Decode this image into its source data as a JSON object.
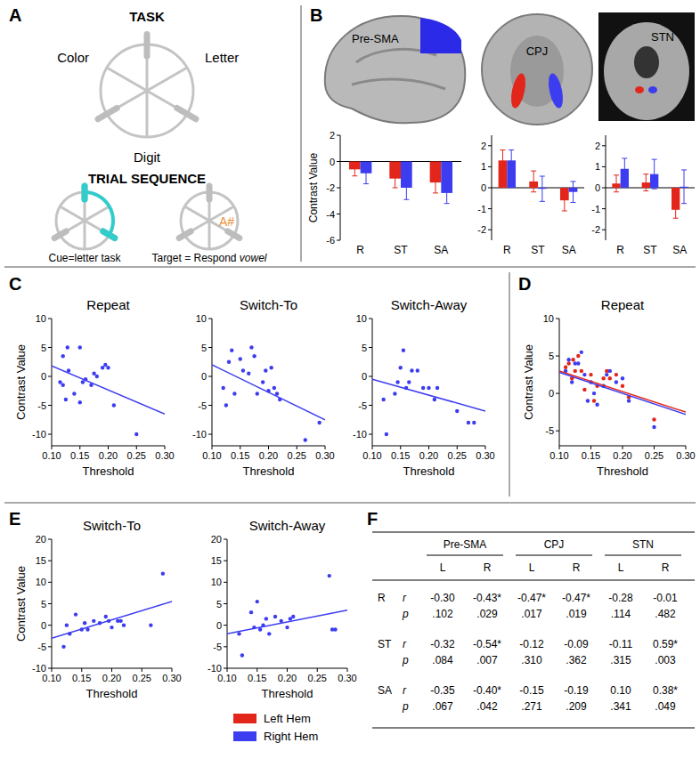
{
  "panel_labels": [
    "A",
    "B",
    "C",
    "D",
    "E",
    "F"
  ],
  "task_diagram": {
    "title": "TASK",
    "tasks": [
      "Color",
      "Letter",
      "Digit"
    ],
    "sequence_title": "TRIAL SEQUENCE",
    "cue_caption": "Cue=letter task",
    "target_caption_prefix": "Target = Respond ",
    "target_caption_emphasis": "vowel",
    "target_stimulus": "A#"
  },
  "brain_images": [
    {
      "label": "Pre-SMA"
    },
    {
      "label": "CPJ"
    },
    {
      "label": "STN"
    }
  ],
  "chart_data": [
    {
      "type": "bar",
      "y_label": "Contrast Value",
      "categories": [
        "R",
        "ST",
        "SA"
      ],
      "ylim": [
        -6,
        2
      ],
      "yticks": [
        2,
        0,
        -2,
        -4,
        -6
      ],
      "series": [
        {
          "name": "Left Hem",
          "color": "#e3261c",
          "values": [
            -0.6,
            -1.3,
            -1.6
          ],
          "errors": [
            0.5,
            0.7,
            0.8
          ]
        },
        {
          "name": "Right Hem",
          "color": "#3c3cf0",
          "values": [
            -0.9,
            -2.0,
            -2.4
          ],
          "errors": [
            0.8,
            0.9,
            0.8
          ]
        }
      ]
    },
    {
      "type": "bar",
      "categories": [
        "R",
        "ST",
        "SA"
      ],
      "ylim": [
        -2.5,
        2.5
      ],
      "yticks": [
        2,
        1,
        0,
        -1,
        -2
      ],
      "series": [
        {
          "color": "#e3261c",
          "values": [
            1.3,
            0.3,
            -0.6
          ],
          "errors": [
            0.5,
            0.5,
            0.5
          ]
        },
        {
          "color": "#3c3cf0",
          "values": [
            1.3,
            -0.05,
            -0.2
          ],
          "errors": [
            0.5,
            0.6,
            0.5
          ]
        }
      ]
    },
    {
      "type": "bar",
      "categories": [
        "R",
        "ST",
        "SA"
      ],
      "ylim": [
        -2.5,
        2.5
      ],
      "yticks": [
        2,
        1,
        0,
        -1,
        -2
      ],
      "series": [
        {
          "color": "#e3261c",
          "values": [
            0.2,
            0.25,
            -1.05
          ],
          "errors": [
            0.4,
            0.4,
            0.4
          ]
        },
        {
          "color": "#3c3cf0",
          "values": [
            0.9,
            0.65,
            0.05
          ],
          "errors": [
            0.5,
            0.7,
            0.8
          ]
        }
      ]
    },
    {
      "type": "scatter",
      "title": "Repeat",
      "x_label": "Threshold",
      "y_label": "Contrast Value",
      "xlim": [
        0.1,
        0.3
      ],
      "ylim": [
        -12,
        10
      ],
      "xticks": [
        {
          "value": 0.1,
          "label": "0.10"
        },
        0.15,
        {
          "value": 0.2,
          "label": "0.20"
        },
        0.25,
        {
          "value": 0.3,
          "label": "0.30"
        }
      ],
      "yticks": [
        10,
        5,
        0,
        -5,
        -10
      ],
      "series": [
        {
          "type": "scatter",
          "marker": "circle",
          "color": "#3c3cf0",
          "x": [
            0.115,
            0.12,
            0.12,
            0.125,
            0.128,
            0.13,
            0.14,
            0.15,
            0.15,
            0.155,
            0.16,
            0.17,
            0.175,
            0.18,
            0.19,
            0.195,
            0.2,
            0.21,
            0.25
          ],
          "values": [
            -1,
            3.5,
            -1.5,
            -4,
            5,
            1,
            -3,
            5,
            -4.5,
            -1,
            -0.5,
            -1.5,
            0.5,
            0,
            1.5,
            2,
            1.5,
            -5,
            -10
          ]
        },
        {
          "type": "line",
          "color": "#3c3cf0",
          "x": [
            0.1,
            0.3
          ],
          "values": [
            1.8,
            -6.5
          ]
        }
      ]
    },
    {
      "type": "scatter",
      "title": "Switch-To",
      "x_label": "Threshold",
      "xlim": [
        0.1,
        0.3
      ],
      "ylim": [
        -12,
        10
      ],
      "xticks": [
        {
          "value": 0.1,
          "label": "0.10"
        },
        0.15,
        {
          "value": 0.2,
          "label": "0.20"
        },
        0.25,
        {
          "value": 0.3,
          "label": "0.30"
        }
      ],
      "yticks": [
        10,
        5,
        0,
        -5,
        -10
      ],
      "series": [
        {
          "type": "scatter",
          "marker": "circle",
          "color": "#3c3cf0",
          "x": [
            0.12,
            0.125,
            0.13,
            0.135,
            0.14,
            0.15,
            0.155,
            0.165,
            0.17,
            0.175,
            0.18,
            0.19,
            0.195,
            0.2,
            0.205,
            0.21,
            0.215,
            0.22,
            0.265,
            0.29
          ],
          "values": [
            -2,
            -5,
            2.5,
            4.5,
            -3,
            3,
            1,
            0.5,
            5,
            3.5,
            -3,
            -1,
            1,
            -2.5,
            1.5,
            -2,
            -3,
            -4,
            -11,
            -8
          ]
        },
        {
          "type": "line",
          "color": "#3c3cf0",
          "x": [
            0.1,
            0.3
          ],
          "values": [
            2,
            -7.5
          ]
        }
      ]
    },
    {
      "type": "scatter",
      "title": "Switch-Away",
      "x_label": "Threshold",
      "xlim": [
        0.1,
        0.3
      ],
      "ylim": [
        -12,
        10
      ],
      "xticks": [
        {
          "value": 0.1,
          "label": "0.10"
        },
        0.15,
        {
          "value": 0.2,
          "label": "0.20"
        },
        0.25,
        {
          "value": 0.3,
          "label": "0.30"
        }
      ],
      "yticks": [
        10,
        5,
        0,
        -5,
        -10
      ],
      "series": [
        {
          "type": "scatter",
          "marker": "circle",
          "color": "#3c3cf0",
          "x": [
            0.12,
            0.125,
            0.14,
            0.145,
            0.15,
            0.155,
            0.16,
            0.165,
            0.17,
            0.18,
            0.19,
            0.2,
            0.21,
            0.215,
            0.25,
            0.27,
            0.28
          ],
          "values": [
            -4,
            -10,
            -3,
            -1,
            1.5,
            4.5,
            -2,
            -1,
            1,
            1,
            -2,
            -2,
            -4,
            -2,
            -6,
            -8,
            -8
          ]
        },
        {
          "type": "line",
          "color": "#3c3cf0",
          "x": [
            0.1,
            0.3
          ],
          "values": [
            -0.5,
            -6
          ]
        }
      ]
    },
    {
      "type": "scatter",
      "title": "Repeat",
      "x_label": "Threshold",
      "y_label": "Contrast Value",
      "xlim": [
        0.1,
        0.3
      ],
      "ylim": [
        -7,
        10
      ],
      "xticks": [
        {
          "value": 0.1,
          "label": "0.10"
        },
        0.15,
        {
          "value": 0.2,
          "label": "0.20"
        },
        0.25,
        {
          "value": 0.3,
          "label": "0.30"
        }
      ],
      "yticks": [
        10,
        5,
        0,
        -5
      ],
      "series": [
        {
          "type": "scatter",
          "marker": "circle",
          "color": "#e3261c",
          "x": [
            0.11,
            0.115,
            0.12,
            0.122,
            0.125,
            0.13,
            0.135,
            0.14,
            0.15,
            0.155,
            0.16,
            0.17,
            0.175,
            0.18,
            0.19,
            0.2,
            0.21,
            0.25
          ],
          "values": [
            3.5,
            4,
            2,
            4.5,
            3,
            5,
            3,
            0.5,
            2.5,
            -1,
            1,
            2,
            3,
            2,
            2.5,
            1,
            -0.5,
            -3.5
          ]
        },
        {
          "type": "scatter",
          "marker": "circle",
          "color": "#3c3cf0",
          "x": [
            0.11,
            0.115,
            0.12,
            0.125,
            0.13,
            0.135,
            0.14,
            0.145,
            0.15,
            0.155,
            0.16,
            0.17,
            0.175,
            0.18,
            0.19,
            0.2,
            0.21,
            0.25
          ],
          "values": [
            3,
            4.5,
            1.5,
            4,
            4,
            5.5,
            2.5,
            -1,
            1.5,
            0,
            -1.5,
            1,
            2.5,
            3,
            1.5,
            2,
            -1,
            -4.5
          ]
        },
        {
          "type": "line",
          "color": "#e3261c",
          "x": [
            0.1,
            0.3
          ],
          "values": [
            3,
            -2.5
          ]
        },
        {
          "type": "line",
          "color": "#3c3cf0",
          "x": [
            0.1,
            0.3
          ],
          "values": [
            2.8,
            -2.8
          ]
        }
      ]
    },
    {
      "type": "scatter",
      "title": "Switch-To",
      "x_label": "Threshold",
      "y_label": "Contrast Value",
      "xlim": [
        0.1,
        0.3
      ],
      "ylim": [
        -10,
        20
      ],
      "xticks": [
        {
          "value": 0.1,
          "label": "0.10"
        },
        0.15,
        {
          "value": 0.2,
          "label": "0.20"
        },
        0.25,
        {
          "value": 0.3,
          "label": "0.30"
        }
      ],
      "yticks": [
        20,
        15,
        10,
        5,
        0,
        -5,
        -10
      ],
      "series": [
        {
          "type": "scatter",
          "marker": "circle",
          "color": "#3c3cf0",
          "x": [
            0.12,
            0.125,
            0.13,
            0.14,
            0.15,
            0.155,
            0.16,
            0.17,
            0.18,
            0.19,
            0.195,
            0.2,
            0.21,
            0.215,
            0.22,
            0.265,
            0.285
          ],
          "values": [
            -5,
            0,
            -2,
            2.5,
            -1,
            0.5,
            -1,
            1,
            0.5,
            2,
            1,
            -0.5,
            1,
            1,
            0,
            0,
            12
          ]
        },
        {
          "type": "line",
          "color": "#3c3cf0",
          "x": [
            0.1,
            0.3
          ],
          "values": [
            -3,
            5.5
          ]
        }
      ]
    },
    {
      "type": "scatter",
      "title": "Switch-Away",
      "x_label": "Threshold",
      "xlim": [
        0.1,
        0.3
      ],
      "ylim": [
        -10,
        20
      ],
      "xticks": [
        {
          "value": 0.1,
          "label": "0.10"
        },
        0.15,
        {
          "value": 0.2,
          "label": "0.20"
        },
        0.25,
        {
          "value": 0.3,
          "label": "0.30"
        }
      ],
      "yticks": [
        20,
        15,
        10,
        5,
        0,
        -5,
        -10
      ],
      "series": [
        {
          "type": "scatter",
          "marker": "circle",
          "color": "#3c3cf0",
          "x": [
            0.12,
            0.125,
            0.14,
            0.145,
            0.15,
            0.155,
            0.16,
            0.165,
            0.17,
            0.18,
            0.19,
            0.2,
            0.205,
            0.21,
            0.27,
            0.275,
            0.28
          ],
          "values": [
            -2,
            -7,
            3,
            -0.5,
            5.5,
            -1,
            0,
            1.5,
            -2,
            2,
            1,
            -0.5,
            1.5,
            2,
            11.5,
            -1,
            -1
          ]
        },
        {
          "type": "line",
          "color": "#3c3cf0",
          "x": [
            0.1,
            0.3
          ],
          "values": [
            -2,
            3.5
          ]
        }
      ]
    }
  ],
  "table": {
    "regions": [
      "Pre-SMA",
      "CPJ",
      "STN"
    ],
    "hemispheres": [
      "L",
      "R",
      "L",
      "R",
      "L",
      "R"
    ],
    "stat_labels": [
      "r",
      "p"
    ],
    "rows": [
      {
        "condition": "R",
        "r": [
          "-0.30",
          "-0.43*",
          "-0.47*",
          "-0.47*",
          "-0.28",
          "-0.01"
        ],
        "p": [
          ".102",
          ".029",
          ".017",
          ".019",
          ".114",
          ".482"
        ]
      },
      {
        "condition": "ST",
        "r": [
          "-0.32",
          "-0.54*",
          "-0.12",
          "-0.09",
          "-0.11",
          "0.59*"
        ],
        "p": [
          ".084",
          ".007",
          ".310",
          ".362",
          ".315",
          ".003"
        ]
      },
      {
        "condition": "SA",
        "r": [
          "-0.35",
          "-0.40*",
          "-0.15",
          "-0.19",
          "0.10",
          "0.38*"
        ],
        "p": [
          ".067",
          ".042",
          ".271",
          ".209",
          ".341",
          ".049"
        ]
      }
    ]
  }
}
